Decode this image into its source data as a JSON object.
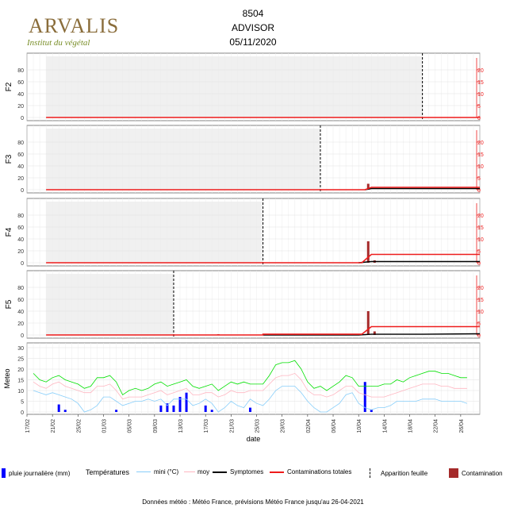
{
  "header": {
    "logo_text": "ARVALIS",
    "logo_subtitle": "Institut du végétal",
    "line1": "8504",
    "line2": "ADVISOR",
    "line3": "05/11/2020"
  },
  "footer": "Données météo : Météo France, prévisions Météo France jusqu'au 26-04-2021",
  "legend": {
    "rain": "pluie journalière (mm)",
    "temps_title": "Températures",
    "min": "mini (°C)",
    "moy": "moy",
    "symptoms": "Symptomes",
    "contam_total": "Contaminations totales",
    "leaf": "Apparition feuille",
    "contam": "Contamination"
  },
  "colors": {
    "red": "#ee1c1c",
    "dark_red": "#a52a2a",
    "black": "#000000",
    "blue": "#0000ff",
    "green": "#00e000",
    "pink": "#ffb6c1",
    "light_blue": "#87cefa",
    "shade": "#f0f0f0"
  },
  "chart_data": {
    "type": "line",
    "xlabel": "date",
    "x_ticks": [
      "17/02",
      "21/02",
      "25/02",
      "01/03",
      "05/03",
      "09/03",
      "13/03",
      "17/03",
      "21/03",
      "25/03",
      "29/03",
      "02/04",
      "06/04",
      "10/04",
      "14/04",
      "18/04",
      "22/04",
      "26/04"
    ],
    "x_range_days": [
      0,
      71
    ],
    "panels": [
      {
        "name": "F2",
        "y_ticks_left": [
          0,
          20,
          40,
          60,
          80
        ],
        "y_ticks_right": [
          0,
          5,
          10,
          15,
          20
        ],
        "shade_end_day": 62,
        "leaf_line_day": 62,
        "contamination_total": [
          [
            3,
            0
          ],
          [
            71,
            0
          ]
        ],
        "symptoms": [],
        "contamination_bars": []
      },
      {
        "name": "F3",
        "y_ticks_left": [
          0,
          20,
          40,
          60,
          80
        ],
        "y_ticks_right": [
          0,
          5,
          10,
          15,
          20
        ],
        "shade_end_day": 46,
        "leaf_line_day": 46,
        "contamination_total": [
          [
            3,
            0
          ],
          [
            53,
            0
          ],
          [
            54,
            1
          ],
          [
            71,
            1
          ]
        ],
        "symptoms": [
          [
            53,
            0
          ],
          [
            54,
            0.5
          ],
          [
            71,
            0.5
          ]
        ],
        "contamination_bars": [
          [
            53.5,
            2.5
          ]
        ]
      },
      {
        "name": "F4",
        "y_ticks_left": [
          0,
          20,
          40,
          60,
          80
        ],
        "y_ticks_right": [
          0,
          5,
          10,
          15,
          20
        ],
        "shade_end_day": 37,
        "leaf_line_day": 37,
        "contamination_total": [
          [
            3,
            0
          ],
          [
            52.5,
            0
          ],
          [
            54,
            3.5
          ],
          [
            71,
            3.5
          ]
        ],
        "symptoms": [
          [
            52,
            0
          ],
          [
            54,
            0.5
          ],
          [
            71,
            0.5
          ]
        ],
        "contamination_bars": [
          [
            53.5,
            9
          ],
          [
            54.5,
            1
          ]
        ]
      },
      {
        "name": "F5",
        "y_ticks_left": [
          0,
          20,
          40,
          60,
          80
        ],
        "y_ticks_right": [
          0,
          5,
          10,
          15,
          20
        ],
        "shade_end_day": 23,
        "leaf_line_day": 23,
        "contamination_total": [
          [
            3,
            0
          ],
          [
            37,
            0
          ],
          [
            37,
            0.3
          ],
          [
            52.5,
            0.3
          ],
          [
            54,
            3.5
          ],
          [
            71,
            3.5
          ]
        ],
        "symptoms": [
          [
            37,
            0
          ],
          [
            52,
            0
          ],
          [
            54,
            0.3
          ],
          [
            62,
            0.3
          ],
          [
            71,
            0.5
          ]
        ],
        "contamination_bars": [
          [
            30,
            0.3
          ],
          [
            53.5,
            10
          ],
          [
            54.5,
            1.5
          ]
        ]
      }
    ],
    "meteo": {
      "name": "Meteo",
      "y_ticks": [
        0,
        5,
        10,
        15,
        20,
        25,
        30
      ],
      "max_temp": [
        [
          1,
          18
        ],
        [
          2,
          15
        ],
        [
          3,
          14
        ],
        [
          4,
          16
        ],
        [
          5,
          17
        ],
        [
          6,
          15
        ],
        [
          7,
          14
        ],
        [
          8,
          13
        ],
        [
          9,
          11
        ],
        [
          10,
          12
        ],
        [
          11,
          16
        ],
        [
          12,
          16
        ],
        [
          13,
          17
        ],
        [
          14,
          14
        ],
        [
          15,
          8
        ],
        [
          16,
          10
        ],
        [
          17,
          11
        ],
        [
          18,
          10
        ],
        [
          19,
          11
        ],
        [
          20,
          13
        ],
        [
          21,
          14
        ],
        [
          22,
          12
        ],
        [
          23,
          13
        ],
        [
          24,
          14
        ],
        [
          25,
          15
        ],
        [
          26,
          12
        ],
        [
          27,
          11
        ],
        [
          28,
          12
        ],
        [
          29,
          13
        ],
        [
          30,
          10
        ],
        [
          31,
          12
        ],
        [
          32,
          14
        ],
        [
          33,
          13
        ],
        [
          34,
          14
        ],
        [
          35,
          13
        ],
        [
          36,
          13
        ],
        [
          37,
          13
        ],
        [
          38,
          17
        ],
        [
          39,
          22
        ],
        [
          40,
          23
        ],
        [
          41,
          23
        ],
        [
          42,
          24
        ],
        [
          43,
          20
        ],
        [
          44,
          14
        ],
        [
          45,
          11
        ],
        [
          46,
          12
        ],
        [
          47,
          10
        ],
        [
          48,
          12
        ],
        [
          49,
          14
        ],
        [
          50,
          17
        ],
        [
          51,
          16
        ],
        [
          52,
          12
        ],
        [
          53,
          12
        ],
        [
          54,
          12
        ],
        [
          55,
          12
        ],
        [
          56,
          13
        ],
        [
          57,
          13
        ],
        [
          58,
          15
        ],
        [
          59,
          14
        ],
        [
          60,
          16
        ],
        [
          61,
          17
        ],
        [
          62,
          18
        ],
        [
          63,
          19
        ],
        [
          64,
          19
        ],
        [
          65,
          18
        ],
        [
          66,
          18
        ],
        [
          67,
          17
        ],
        [
          68,
          16
        ],
        [
          69,
          16
        ]
      ],
      "mean_temp": [
        [
          1,
          14
        ],
        [
          2,
          12
        ],
        [
          3,
          11
        ],
        [
          4,
          13
        ],
        [
          5,
          14
        ],
        [
          6,
          12
        ],
        [
          7,
          11
        ],
        [
          8,
          10
        ],
        [
          9,
          9
        ],
        [
          10,
          9
        ],
        [
          11,
          12
        ],
        [
          12,
          12
        ],
        [
          13,
          13
        ],
        [
          14,
          10
        ],
        [
          15,
          6
        ],
        [
          16,
          7
        ],
        [
          17,
          7
        ],
        [
          18,
          7
        ],
        [
          19,
          8
        ],
        [
          20,
          9
        ],
        [
          21,
          10
        ],
        [
          22,
          8
        ],
        [
          23,
          9
        ],
        [
          24,
          10
        ],
        [
          25,
          11
        ],
        [
          26,
          8
        ],
        [
          27,
          8
        ],
        [
          28,
          9
        ],
        [
          29,
          9
        ],
        [
          30,
          7
        ],
        [
          31,
          8
        ],
        [
          32,
          10
        ],
        [
          33,
          9
        ],
        [
          34,
          9
        ],
        [
          35,
          10
        ],
        [
          36,
          10
        ],
        [
          37,
          10
        ],
        [
          38,
          13
        ],
        [
          39,
          16
        ],
        [
          40,
          17
        ],
        [
          41,
          17
        ],
        [
          42,
          18
        ],
        [
          43,
          15
        ],
        [
          44,
          10
        ],
        [
          45,
          8
        ],
        [
          46,
          8
        ],
        [
          47,
          7
        ],
        [
          48,
          8
        ],
        [
          49,
          10
        ],
        [
          50,
          12
        ],
        [
          51,
          12
        ],
        [
          52,
          9
        ],
        [
          53,
          8
        ],
        [
          54,
          7
        ],
        [
          55,
          7
        ],
        [
          56,
          7
        ],
        [
          57,
          8
        ],
        [
          58,
          9
        ],
        [
          59,
          10
        ],
        [
          60,
          11
        ],
        [
          61,
          12
        ],
        [
          62,
          13
        ],
        [
          63,
          13
        ],
        [
          64,
          13
        ],
        [
          65,
          12
        ],
        [
          66,
          12
        ],
        [
          67,
          11
        ],
        [
          68,
          11
        ],
        [
          69,
          11
        ]
      ],
      "min_temp": [
        [
          1,
          10
        ],
        [
          2,
          9
        ],
        [
          3,
          8
        ],
        [
          4,
          9
        ],
        [
          5,
          8
        ],
        [
          6,
          7
        ],
        [
          7,
          6
        ],
        [
          8,
          4
        ],
        [
          9,
          0
        ],
        [
          10,
          1
        ],
        [
          11,
          3
        ],
        [
          12,
          7
        ],
        [
          13,
          7
        ],
        [
          14,
          5
        ],
        [
          15,
          3
        ],
        [
          16,
          4
        ],
        [
          17,
          5
        ],
        [
          18,
          5
        ],
        [
          19,
          6
        ],
        [
          20,
          5
        ],
        [
          21,
          6
        ],
        [
          22,
          3
        ],
        [
          23,
          6
        ],
        [
          24,
          6
        ],
        [
          25,
          6
        ],
        [
          26,
          3
        ],
        [
          27,
          4
        ],
        [
          28,
          6
        ],
        [
          29,
          4
        ],
        [
          30,
          0
        ],
        [
          31,
          2
        ],
        [
          32,
          5
        ],
        [
          33,
          3
        ],
        [
          34,
          2
        ],
        [
          35,
          6
        ],
        [
          36,
          4
        ],
        [
          37,
          3
        ],
        [
          38,
          6
        ],
        [
          39,
          10
        ],
        [
          40,
          12
        ],
        [
          41,
          12
        ],
        [
          42,
          12
        ],
        [
          43,
          9
        ],
        [
          44,
          5
        ],
        [
          45,
          2
        ],
        [
          46,
          0
        ],
        [
          47,
          0
        ],
        [
          48,
          2
        ],
        [
          49,
          4
        ],
        [
          50,
          8
        ],
        [
          51,
          9
        ],
        [
          52,
          4
        ],
        [
          53,
          2
        ],
        [
          54,
          1
        ],
        [
          55,
          2
        ],
        [
          56,
          2
        ],
        [
          57,
          3
        ],
        [
          58,
          5
        ],
        [
          59,
          5
        ],
        [
          60,
          5
        ],
        [
          61,
          5
        ],
        [
          62,
          6
        ],
        [
          63,
          6
        ],
        [
          64,
          6
        ],
        [
          65,
          5
        ],
        [
          66,
          5
        ],
        [
          67,
          5
        ],
        [
          68,
          5
        ],
        [
          69,
          4
        ]
      ],
      "rain": [
        [
          5,
          3.5
        ],
        [
          6,
          1
        ],
        [
          14,
          1
        ],
        [
          21,
          3
        ],
        [
          22,
          4
        ],
        [
          23,
          3
        ],
        [
          24,
          7
        ],
        [
          25,
          9
        ],
        [
          28,
          3
        ],
        [
          29,
          1
        ],
        [
          35,
          2
        ],
        [
          53,
          14
        ],
        [
          54,
          1
        ]
      ]
    }
  }
}
